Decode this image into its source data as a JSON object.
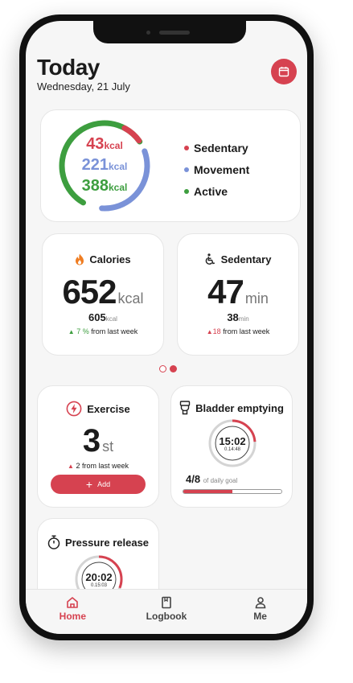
{
  "header": {
    "title": "Today",
    "date": "Wednesday, 21 July",
    "calendar_icon": "calendar-icon"
  },
  "summary": {
    "values": [
      {
        "num": "43",
        "unit": "kcal",
        "color": "#d64250"
      },
      {
        "num": "221",
        "unit": "kcal",
        "color": "#7a92d8"
      },
      {
        "num": "388",
        "unit": "kcal",
        "color": "#3d9e3f"
      }
    ],
    "legend": [
      {
        "label": "Sedentary",
        "color": "#d64250"
      },
      {
        "label": "Movement",
        "color": "#7a92d8"
      },
      {
        "label": "Active",
        "color": "#3d9e3f"
      }
    ]
  },
  "calories": {
    "label": "Calories",
    "icon": "flame-icon",
    "value": "652",
    "unit": "kcal",
    "sub_value": "605",
    "sub_unit": "kcal",
    "trend_pct": "7 %",
    "trend_text": "from last week"
  },
  "sedentary": {
    "label": "Sedentary",
    "icon": "wheelchair-icon",
    "value": "47",
    "unit": "min",
    "sub_value": "38",
    "sub_unit": "min",
    "trend_pct": "18",
    "trend_text": "from last week"
  },
  "pager": {
    "pages": 2,
    "active": 2
  },
  "exercise": {
    "label": "Exercise",
    "icon": "lightning-icon",
    "value": "3",
    "unit": "st",
    "trend_num": "2",
    "trend_text": "from last week",
    "add_label": "Add"
  },
  "bladder": {
    "label": "Bladder emptying",
    "icon": "toilet-icon",
    "timer_main": "15:02",
    "timer_sub": "0.14:48",
    "goal_value": "4/8",
    "goal_text": "of daily goal",
    "goal_fraction": 0.5
  },
  "pressure": {
    "label": "Pressure release",
    "icon": "stopwatch-icon",
    "timer_main": "20:02",
    "timer_sub": "0.15:03"
  },
  "tabs": [
    {
      "label": "Home",
      "icon": "home-icon",
      "active": true
    },
    {
      "label": "Logbook",
      "icon": "book-icon",
      "active": false
    },
    {
      "label": "Me",
      "icon": "user-icon",
      "active": false
    }
  ]
}
